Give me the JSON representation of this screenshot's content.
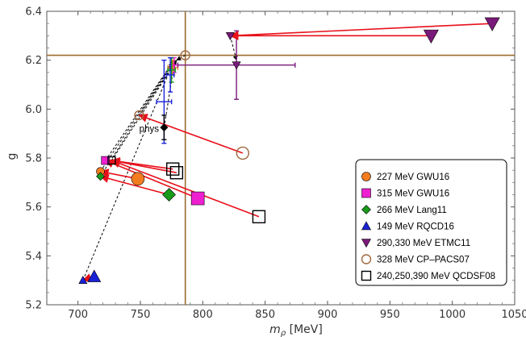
{
  "chart_data": {
    "type": "scatter",
    "xlabel_main": "m",
    "xlabel_sub": "ρ",
    "xlabel_unit": " [MeV]",
    "ylabel": "g",
    "xlim": [
      675,
      1050
    ],
    "ylim": [
      5.2,
      6.4
    ],
    "xticks": [
      700,
      750,
      800,
      850,
      900,
      950,
      1000,
      1050
    ],
    "yticks": [
      5.2,
      5.4,
      5.6,
      5.8,
      6.0,
      6.2,
      6.4
    ],
    "reference_lines": {
      "x": 786,
      "y": 6.22,
      "color": "#9b6a2f"
    },
    "annotation": {
      "text": "phys",
      "x": 757,
      "y": 5.92
    },
    "series": [
      {
        "name": "227 MeV GWU16",
        "marker": "circle",
        "color": "#f47c20",
        "filled": true,
        "points": [
          {
            "x": 748,
            "y": 5.715
          },
          {
            "x": 718,
            "y": 5.745
          }
        ],
        "errors": [
          {
            "x": 776,
            "y": 6.17,
            "xerr": 4,
            "yerr": 0.03
          }
        ],
        "arrows": [
          {
            "x1": 748,
            "y1": 5.715,
            "x2": 718,
            "y2": 5.745
          }
        ]
      },
      {
        "name": "315 MeV GWU16",
        "marker": "square",
        "color": "#ee1fd0",
        "filled": true,
        "points": [
          {
            "x": 796,
            "y": 5.635
          },
          {
            "x": 722,
            "y": 5.79
          }
        ],
        "errors": [
          {
            "x": 777,
            "y": 6.18,
            "xerr": 3,
            "yerr": 0.03
          }
        ],
        "arrows": [
          {
            "x1": 796,
            "y1": 5.635,
            "x2": 722,
            "y2": 5.79
          }
        ]
      },
      {
        "name": "266 MeV Lang11",
        "marker": "diamond",
        "color": "#1a9a1a",
        "filled": true,
        "points": [
          {
            "x": 773,
            "y": 5.65
          },
          {
            "x": 718,
            "y": 5.725
          }
        ],
        "errors": [
          {
            "x": 775,
            "y": 6.16,
            "xerr": 3,
            "yerr": 0.05
          }
        ],
        "arrows": [
          {
            "x1": 773,
            "y1": 5.65,
            "x2": 718,
            "y2": 5.725
          }
        ]
      },
      {
        "name": "149 MeV RQCD16",
        "marker": "triangle-up",
        "color": "#1a22d6",
        "filled": true,
        "points": [
          {
            "x": 713,
            "y": 5.315
          },
          {
            "x": 704,
            "y": 5.3
          }
        ],
        "errors": [
          {
            "x": 769,
            "y": 6.03,
            "xerr": 6,
            "yerr": 0.17
          },
          {
            "x": 774,
            "y": 6.14,
            "xerr": 3,
            "yerr": 0.07
          }
        ],
        "arrows": [
          {
            "x1": 713,
            "y1": 5.315,
            "x2": 704,
            "y2": 5.3
          }
        ]
      },
      {
        "name": "290,330 MeV ETMC11",
        "marker": "triangle-down",
        "color": "#7a1a7a",
        "filled": true,
        "points": [
          {
            "x": 983,
            "y": 6.3
          },
          {
            "x": 1032,
            "y": 6.35
          },
          {
            "x": 822,
            "y": 6.3
          },
          {
            "x": 827,
            "y": 6.18
          }
        ],
        "errors": [
          {
            "x": 827,
            "y": 6.18,
            "xerr": 47,
            "yerr": 0.14
          }
        ],
        "arrows": [
          {
            "x1": 983,
            "y1": 6.3,
            "x2": 822,
            "y2": 6.3
          },
          {
            "x1": 1032,
            "y1": 6.35,
            "x2": 822,
            "y2": 6.3
          }
        ]
      },
      {
        "name": "328 MeV CP–PACS07",
        "marker": "circle",
        "color": "#a0683e",
        "filled": false,
        "points": [
          {
            "x": 832,
            "y": 5.82
          },
          {
            "x": 749,
            "y": 5.975
          },
          {
            "x": 786,
            "y": 6.22
          }
        ],
        "errors": [],
        "arrows": [
          {
            "x1": 832,
            "y1": 5.82,
            "x2": 749,
            "y2": 5.975
          }
        ]
      },
      {
        "name": "240,250,390 MeV QCDSF08",
        "marker": "square",
        "color": "#000000",
        "filled": false,
        "points": [
          {
            "x": 779,
            "y": 5.74
          },
          {
            "x": 776,
            "y": 5.755
          },
          {
            "x": 845,
            "y": 5.56
          },
          {
            "x": 727,
            "y": 5.79
          }
        ],
        "errors": [],
        "arrows": [
          {
            "x1": 779,
            "y1": 5.74,
            "x2": 727,
            "y2": 5.79
          },
          {
            "x1": 776,
            "y1": 5.755,
            "x2": 727,
            "y2": 5.79
          },
          {
            "x1": 845,
            "y1": 5.56,
            "x2": 727,
            "y2": 5.79
          }
        ]
      }
    ],
    "physical_point": {
      "x": 769,
      "y": 5.925,
      "yerr": 0.05
    },
    "dashed_links": [
      {
        "x1": 704,
        "y1": 5.3,
        "x2": 777,
        "y2": 6.2
      },
      {
        "x1": 718,
        "y1": 5.745,
        "x2": 776,
        "y2": 6.19
      },
      {
        "x1": 722,
        "y1": 5.79,
        "x2": 777,
        "y2": 6.2
      },
      {
        "x1": 718,
        "y1": 5.725,
        "x2": 775,
        "y2": 6.18
      },
      {
        "x1": 727,
        "y1": 5.79,
        "x2": 778,
        "y2": 6.19
      },
      {
        "x1": 749,
        "y1": 5.975,
        "x2": 779,
        "y2": 6.2
      },
      {
        "x1": 769,
        "y1": 5.925,
        "x2": 777,
        "y2": 6.18
      },
      {
        "x1": 822,
        "y1": 6.3,
        "x2": 827,
        "y2": 6.2
      },
      {
        "x1": 786,
        "y1": 6.22,
        "x2": 779,
        "y2": 6.2
      }
    ]
  }
}
